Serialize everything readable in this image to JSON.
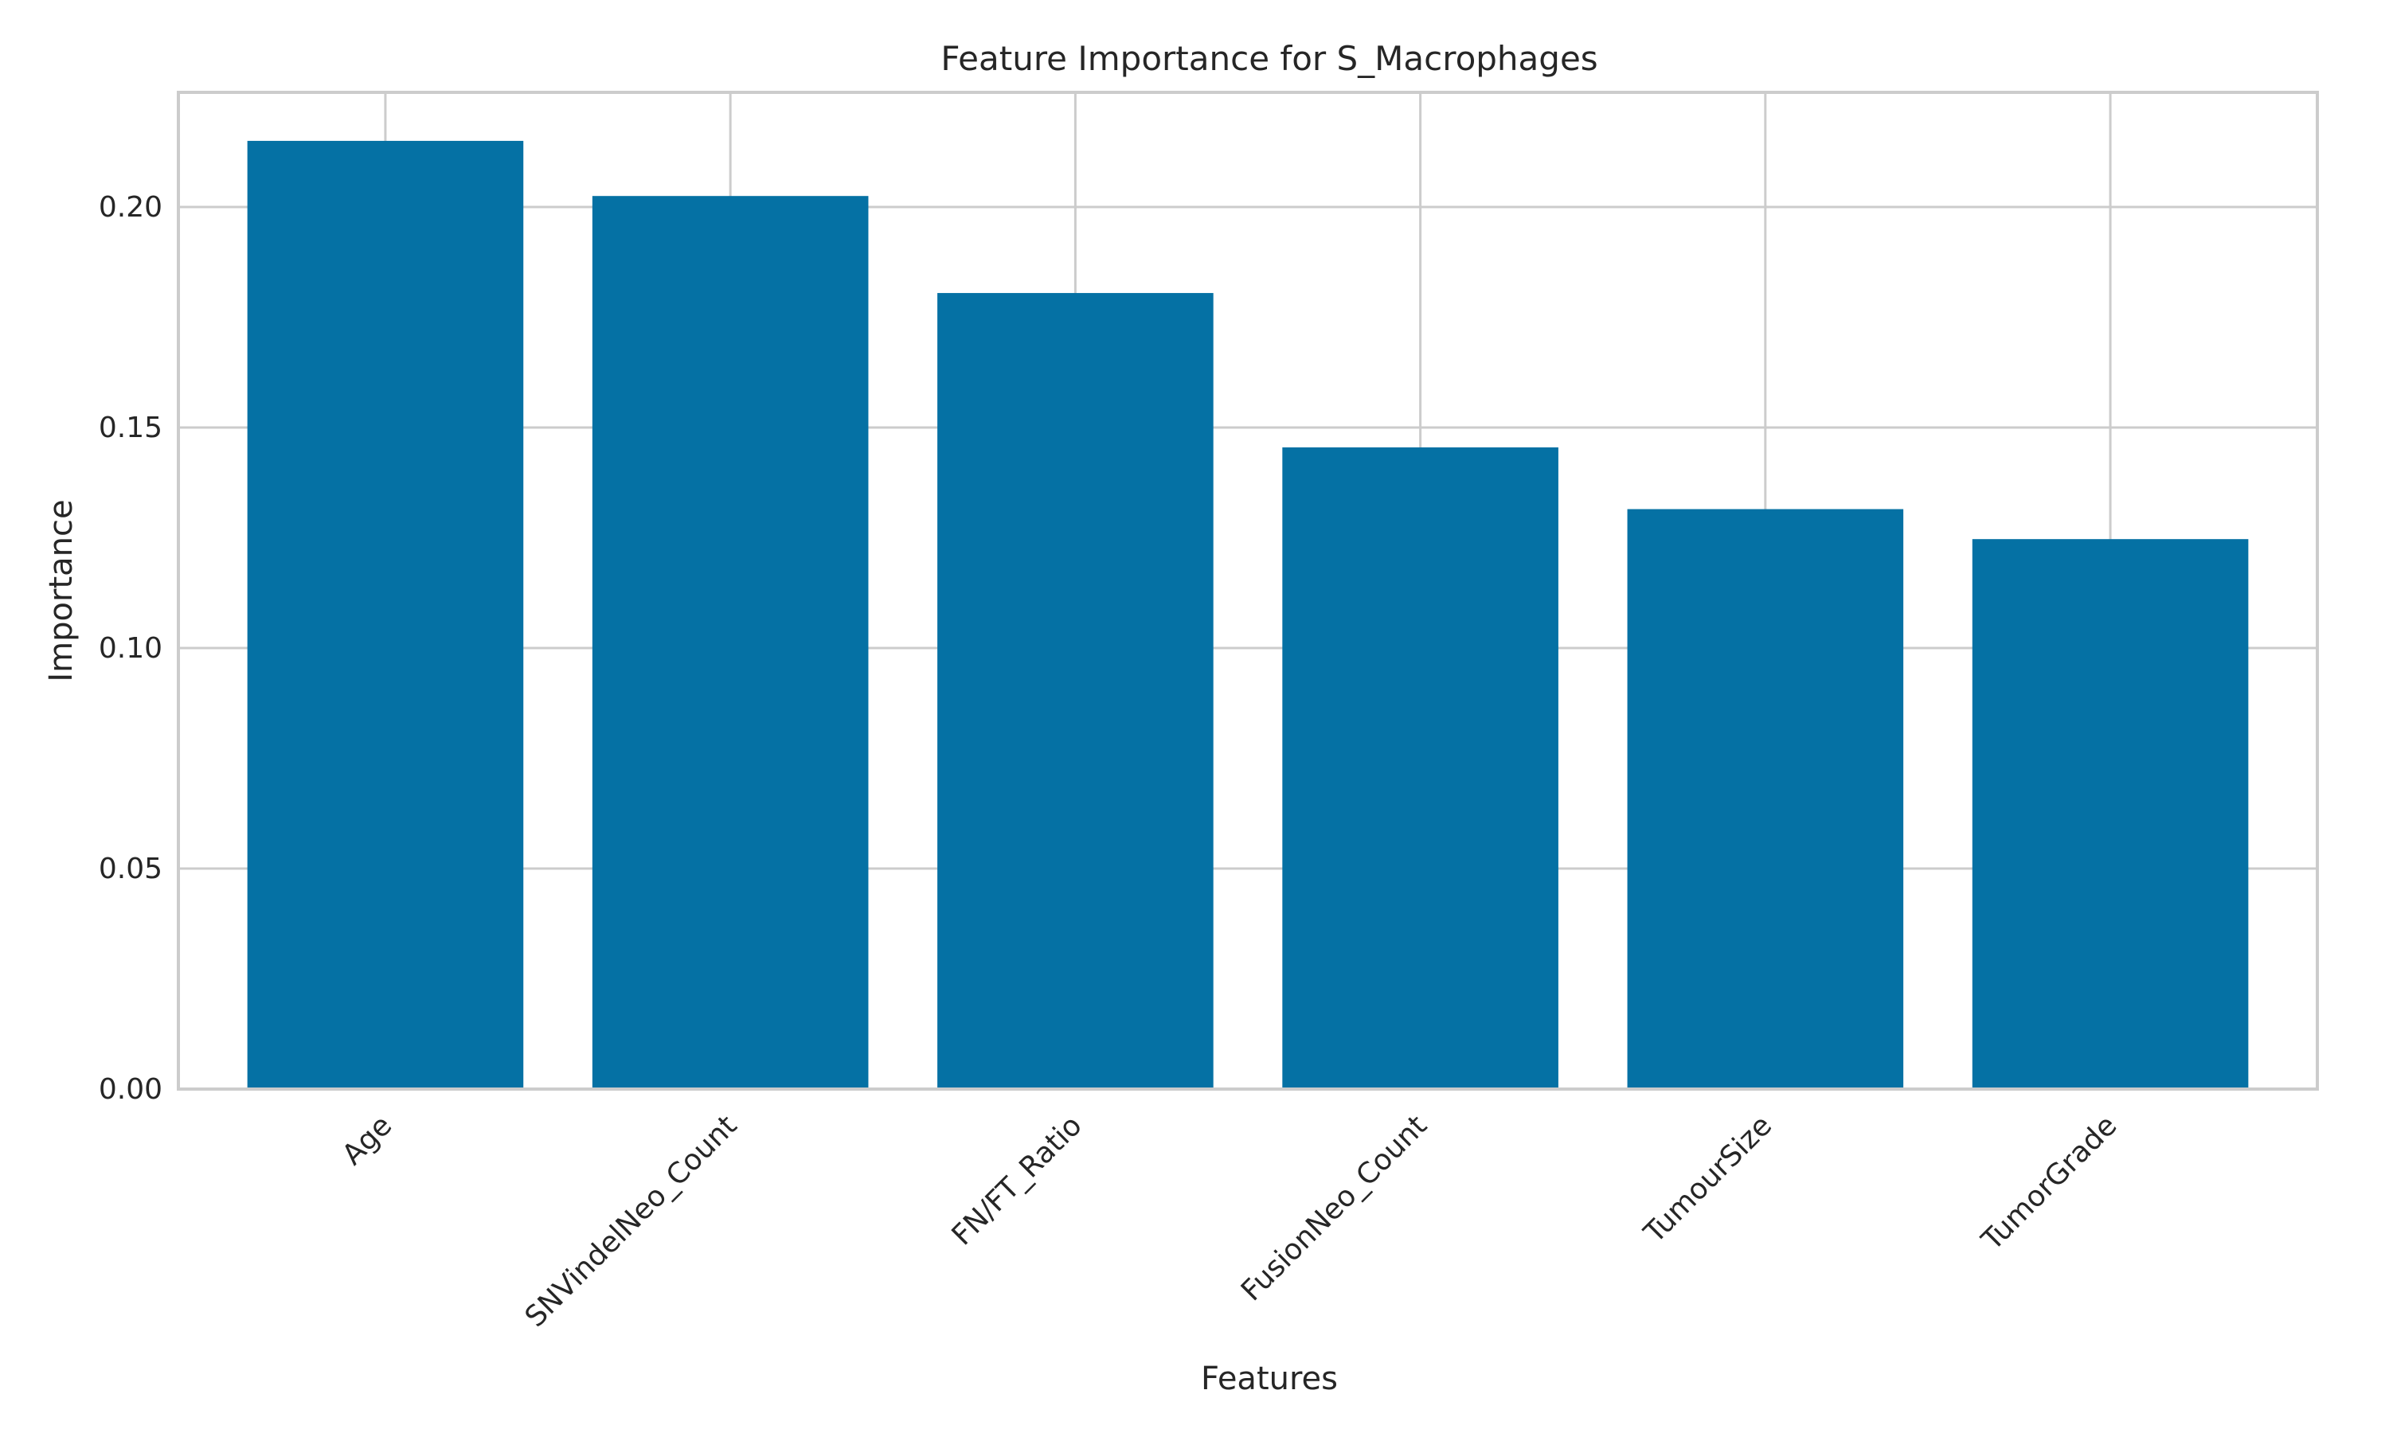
{
  "chart_data": {
    "type": "bar",
    "title": "Feature Importance for S_Macrophages",
    "xlabel": "Features",
    "ylabel": "Importance",
    "categories": [
      "Age",
      "SNVindelNeo_Count",
      "FN/FT_Ratio",
      "FusionNeo_Count",
      "TumourSize",
      "TumorGrade"
    ],
    "values": [
      0.215,
      0.2025,
      0.1805,
      0.1455,
      0.1315,
      0.1247
    ],
    "ylim": [
      0,
      0.226
    ],
    "yticks": [
      0.0,
      0.05,
      0.1,
      0.15,
      0.2
    ],
    "ytick_labels": [
      "0.00",
      "0.05",
      "0.10",
      "0.15",
      "0.20"
    ],
    "grid": true,
    "bar_color": "#0571a4",
    "grid_color": "#cccccc"
  }
}
